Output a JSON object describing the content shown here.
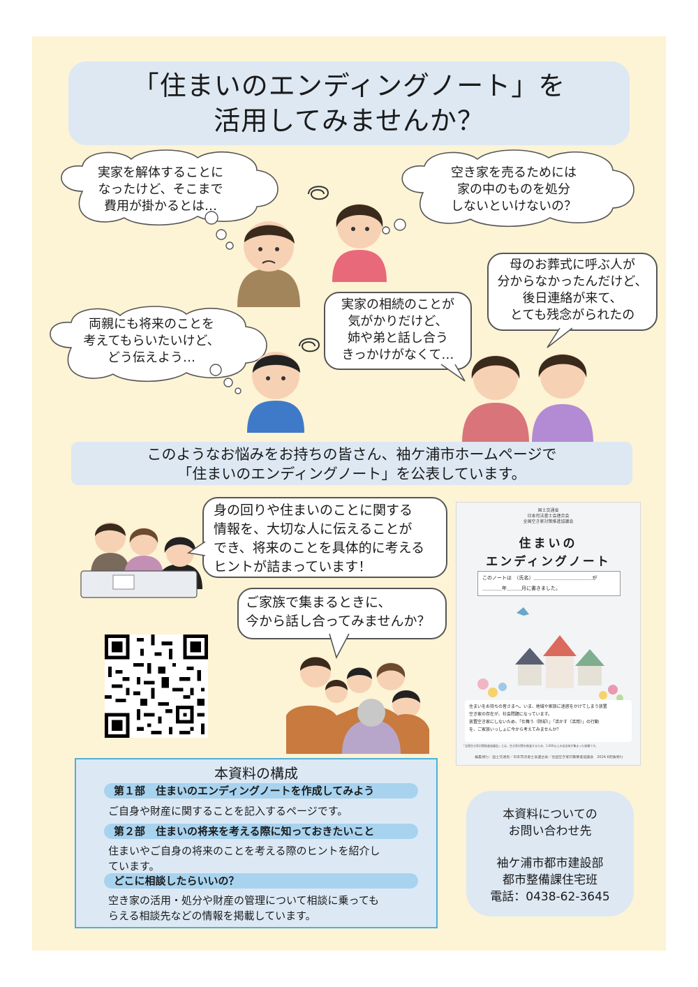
{
  "title": {
    "line1": "「住まいのエンディングノート」を",
    "line2": "活用してみませんか？"
  },
  "worries": {
    "b1": [
      "実家を解体することに",
      "なったけど、そこまで",
      "費用が掛かるとは…"
    ],
    "b2": [
      "空き家を売るためには",
      "家の中のものを処分",
      "しないといけないの？"
    ],
    "b3": [
      "両親にも将来のことを",
      "考えてもらいたいけど、",
      "どう伝えよう…"
    ],
    "b4": [
      "実家の相続のことが",
      "気がかりだけど、",
      "姉や弟と話し合う",
      "きっかけがなくて…"
    ],
    "b5": [
      "母のお葬式に呼ぶ人が",
      "分からなかったんだけど、",
      "後日連絡が来て、",
      "とても残念がられたの"
    ]
  },
  "announcement": {
    "line1": "このようなお悩みをお持ちの皆さん、袖ケ浦市ホームページで",
    "line2": "「住まいのエンディングノート」を公表しています。"
  },
  "info_bubble": [
    "身の回りや住まいのことに関する",
    "情報を、大切な人に伝えることが",
    "でき、将来のことを具体的に考える",
    "ヒントが詰まっています！"
  ],
  "family_bubble": [
    "ご家族で集まるときに、",
    "今から話し合ってみませんか？"
  ],
  "book_cover": {
    "publisher": [
      "国土交通省",
      "日本司法書士会連合会",
      "全国空き家対策推進協議会"
    ],
    "title1": "住まいの",
    "title2": "エンディングノート",
    "owner_line1": "このノートは　（氏名）＿＿＿＿＿＿＿＿＿＿＿＿が",
    "owner_line2": "＿＿＿＿年＿＿＿月に書きました。",
    "message": [
      "住まいをお持ちの皆さまへ。いま、地域や家族に迷惑をかけてしまう放置",
      "空き家の存在が、社会問題になっています。",
      "放置空き家にしないため、「仕舞う（除却）」「活かす（活用）」の行動",
      "を、ご家族いっしょに今から考えてみませんか？"
    ],
    "note": "「全国空き家対策推進協議会」とは、空き家対策を推進するため、1,000以上の自治体が集まった組織です。",
    "footer": "編集発行：国土交通省／日本司法書士会連合会／全国空き家対策推進協議会　2024.6初版発行"
  },
  "contents": {
    "heading": "本資料の構成",
    "sections": [
      {
        "head": "第１部　住まいのエンディングノートを作成してみよう",
        "desc": [
          "ご自身や財産に関することを記入するページです。"
        ]
      },
      {
        "head": "第２部　住まいの将来を考える際に知っておきたいこと",
        "desc": [
          "住まいやご自身の将来のことを考える際のヒントを紹介し",
          "ています。"
        ]
      },
      {
        "head": "どこに相談したらいいの？",
        "desc": [
          "空き家の活用・処分や財産の管理について相談に乗っても",
          "らえる相談先などの情報を掲載しています。"
        ]
      }
    ]
  },
  "inquiry": {
    "line1": "本資料についての",
    "line2": "お問い合わせ先",
    "line3": "袖ケ浦市都市建設部",
    "line4": "都市整備課住宅班",
    "line5": "電話：0438-62-3645"
  },
  "colors": {
    "background": "#fdf3d5",
    "title_box": "#dde8f3",
    "section_head": "#a8d3ef",
    "contents_border": "#4bb0d8"
  }
}
